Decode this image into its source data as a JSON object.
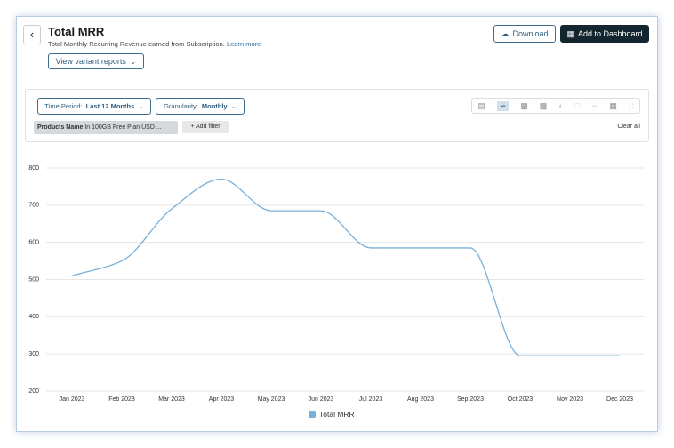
{
  "header": {
    "title": "Total MRR",
    "subtitle": "Total Monthly Recurring Revenue earned from Subscription.",
    "link": "Learn more",
    "variant_button": "View variant reports",
    "download": "Download",
    "add_dashboard": "Add to Dashboard"
  },
  "filters": {
    "time_period": {
      "label": "Time Period:",
      "value": "Last 12 Months"
    },
    "granularity": {
      "label": "Granularity:",
      "value": "Monthly"
    },
    "chip": {
      "field": "Products Name",
      "condition": "In 100GB Free Plan USD ..."
    },
    "add_filter": "Add filter",
    "clear_all": "Clear all"
  },
  "chart_data": {
    "type": "line",
    "categories": [
      "Jan 2023",
      "Feb 2023",
      "Mar 2023",
      "Apr 2023",
      "May 2023",
      "Jun 2023",
      "Jul 2023",
      "Aug 2023",
      "Sep 2023",
      "Oct 2023",
      "Nov 2023",
      "Dec 2023"
    ],
    "series": [
      {
        "name": "Total MRR",
        "color": "#79b0d8",
        "values": [
          510,
          550,
          690,
          770,
          685,
          685,
          585,
          585,
          585,
          295,
          295,
          295
        ]
      }
    ],
    "ylim": [
      200,
      800
    ],
    "yticks": [
      200,
      300,
      400,
      500,
      600,
      700,
      800
    ],
    "grid": true
  }
}
